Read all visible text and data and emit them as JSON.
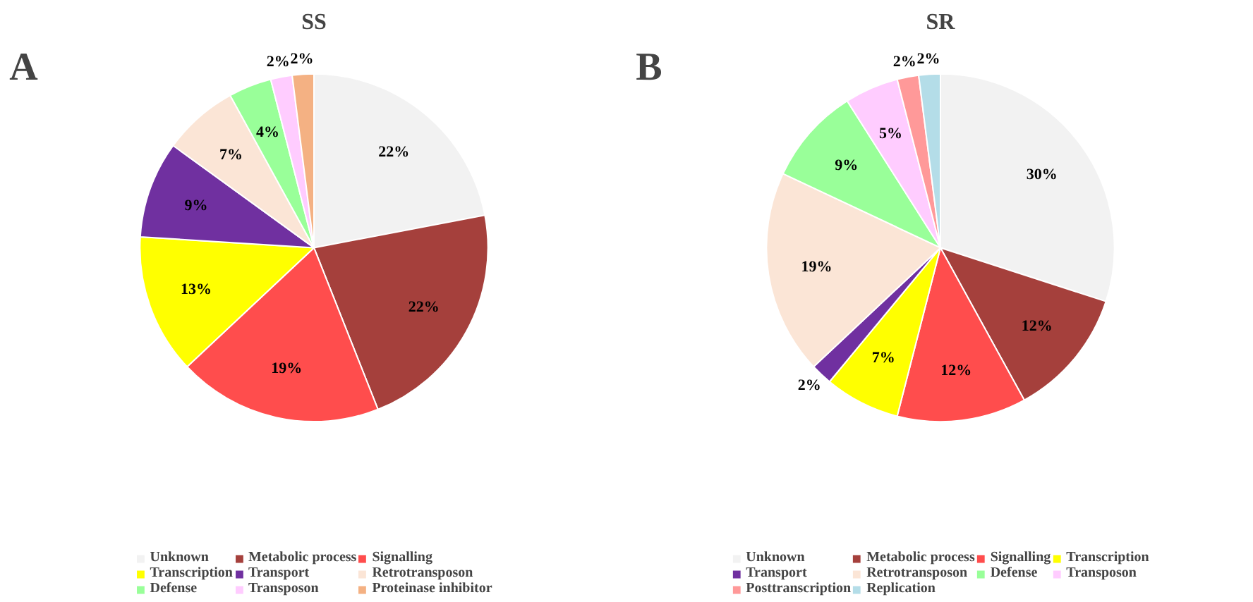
{
  "chart_data": [
    {
      "type": "pie",
      "title": "SS",
      "annotations": [
        "A"
      ],
      "legend": "bottom",
      "value_labels": [
        "22%",
        "22%",
        "19%",
        "13%",
        "9%",
        "7%",
        "4%",
        "2%",
        "2%"
      ],
      "categories": [
        "Unknown",
        "Metabolic process",
        "Signalling",
        "Transcription",
        "Transport",
        "Retrotransposon",
        "Defense",
        "Transposon",
        "Proteinase inhibitor"
      ],
      "values": [
        22,
        22,
        19,
        13,
        9,
        7,
        4,
        2,
        2
      ],
      "colors": [
        "#f2f2f2",
        "#a5403c",
        "#ff4d4d",
        "#ffff00",
        "#7030a0",
        "#fbe5d6",
        "#99ff99",
        "#ffccff",
        "#f4b183"
      ]
    },
    {
      "type": "pie",
      "title": "SR",
      "annotations": [
        "B"
      ],
      "legend": "bottom",
      "value_labels": [
        "30%",
        "12%",
        "12%",
        "7%",
        "2%",
        "19%",
        "9%",
        "5%",
        "2%",
        "2%"
      ],
      "categories": [
        "Unknown",
        "Metabolic process",
        "Signalling",
        "Transcription",
        "Transport",
        "Retrotransposon",
        "Defense",
        "Transposon",
        "Posttranscription",
        "Replication"
      ],
      "values": [
        30,
        12,
        12,
        7,
        2,
        19,
        9,
        5,
        2,
        2
      ],
      "colors": [
        "#f2f2f2",
        "#a5403c",
        "#ff4d4d",
        "#ffff00",
        "#7030a0",
        "#fbe5d6",
        "#99ff99",
        "#ffccff",
        "#ff9999",
        "#b4dde8"
      ]
    }
  ]
}
